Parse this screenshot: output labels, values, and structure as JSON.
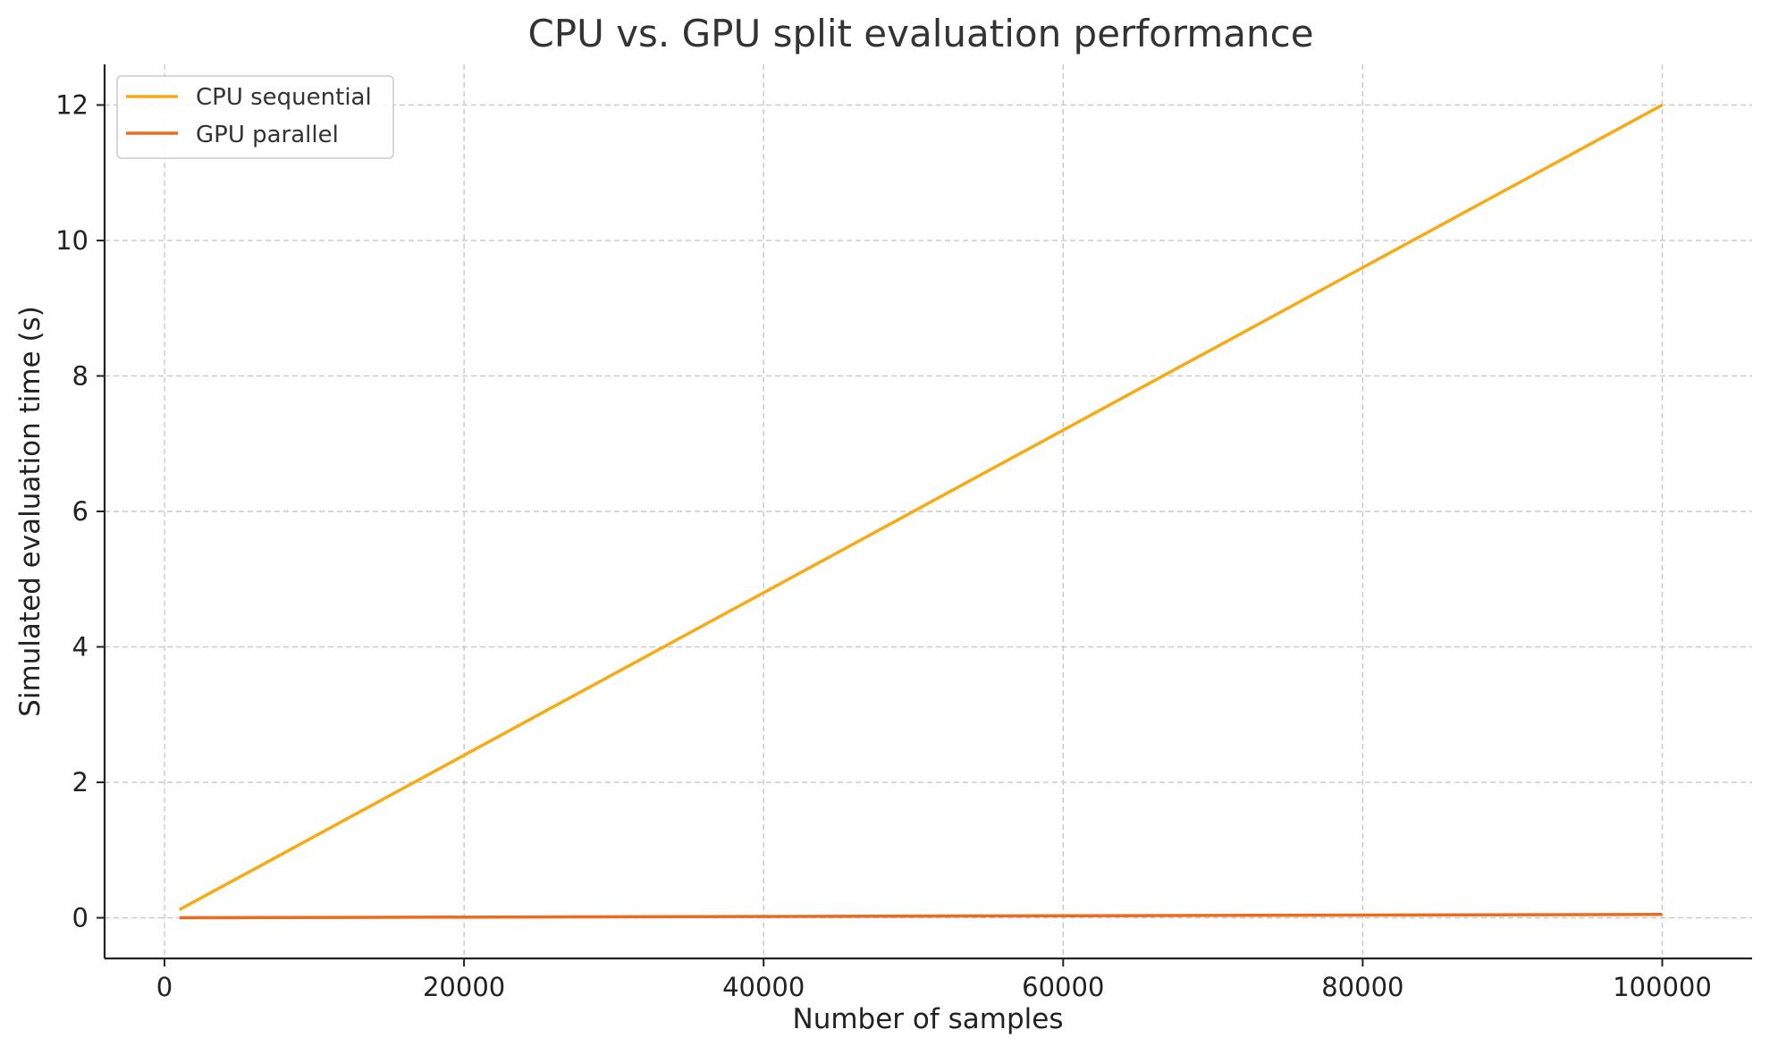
{
  "chart_data": {
    "type": "line",
    "title": "CPU vs. GPU split evaluation performance",
    "xlabel": "Number of samples",
    "ylabel": "Simulated evaluation time (s)",
    "xlim": [
      -4000,
      106000
    ],
    "ylim": [
      -0.6,
      12.6
    ],
    "xticks": [
      0,
      20000,
      40000,
      60000,
      80000,
      100000
    ],
    "xtick_labels": [
      "0",
      "20000",
      "40000",
      "60000",
      "80000",
      "100000"
    ],
    "yticks": [
      0,
      2,
      4,
      6,
      8,
      10,
      12
    ],
    "ytick_labels": [
      "0",
      "2",
      "4",
      "6",
      "8",
      "10",
      "12"
    ],
    "grid": true,
    "legend_position": "top-left",
    "x": [
      1000,
      100000
    ],
    "series": [
      {
        "name": "CPU sequential",
        "color": "#F7AA14",
        "values": [
          0.12,
          12.0
        ]
      },
      {
        "name": "GPU parallel",
        "color": "#EE6A1E",
        "values": [
          0.0005,
          0.05
        ]
      }
    ]
  }
}
